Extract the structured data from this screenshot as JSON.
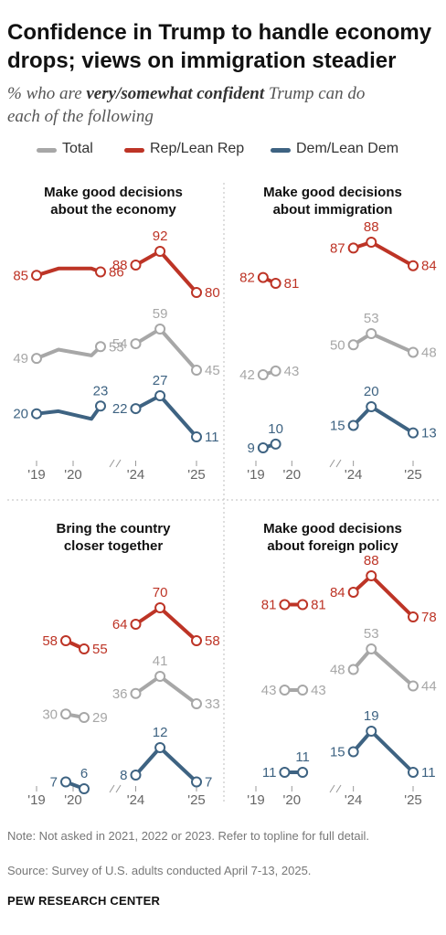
{
  "title_line1": "Confidence in Trump to handle economy",
  "title_line2": "drops; views on immigration steadier",
  "subtitle": {
    "prefix": "% who are ",
    "emphasis": "very/somewhat confident",
    "suffix_line1": " Trump can do",
    "line2": "each of the following"
  },
  "legend": [
    {
      "label": "Total",
      "color": "#a7a7a7"
    },
    {
      "label": "Rep/Lean Rep",
      "color": "#bd3426"
    },
    {
      "label": "Dem/Lean Dem",
      "color": "#3e6382"
    }
  ],
  "note": "Note: Not asked in 2021, 2022 or 2023. Refer to topline for full detail.",
  "source": "Source: Survey of U.S. adults conducted April 7-13, 2025.",
  "brand": "PEW RESEARCH CENTER",
  "colors": {
    "total": "#a7a7a7",
    "rep": "#bd3426",
    "dem": "#3e6382"
  },
  "chart_data": [
    {
      "type": "line",
      "title": [
        "Make good decisions",
        "about the economy"
      ],
      "x_ticks": [
        "'19",
        "'20",
        "'24",
        "'25"
      ],
      "series": [
        {
          "key": "rep",
          "name": "Rep/Lean Rep",
          "segments": [
            [
              {
                "x": 2019.0,
                "y": 85,
                "label": "85"
              },
              {
                "x": 2019.6,
                "y": 87
              },
              {
                "x": 2020.5,
                "y": 87
              },
              {
                "x": 2020.75,
                "y": 86,
                "label": "86"
              }
            ],
            [
              {
                "x": 2024.0,
                "y": 88,
                "label": "88"
              },
              {
                "x": 2024.4,
                "y": 92,
                "label": "92"
              },
              {
                "x": 2025.0,
                "y": 80,
                "label": "80"
              }
            ]
          ]
        },
        {
          "key": "total",
          "name": "Total",
          "segments": [
            [
              {
                "x": 2019.0,
                "y": 49,
                "label": "49"
              },
              {
                "x": 2019.6,
                "y": 52
              },
              {
                "x": 2020.5,
                "y": 50
              },
              {
                "x": 2020.75,
                "y": 53,
                "label": "53"
              }
            ],
            [
              {
                "x": 2024.0,
                "y": 54,
                "label": "54"
              },
              {
                "x": 2024.4,
                "y": 59,
                "label": "59"
              },
              {
                "x": 2025.0,
                "y": 45,
                "label": "45"
              }
            ]
          ]
        },
        {
          "key": "dem",
          "name": "Dem/Lean Dem",
          "segments": [
            [
              {
                "x": 2019.0,
                "y": 20,
                "label": "20"
              },
              {
                "x": 2019.6,
                "y": 21
              },
              {
                "x": 2020.5,
                "y": 18
              },
              {
                "x": 2020.75,
                "y": 23,
                "label": "23"
              }
            ],
            [
              {
                "x": 2024.0,
                "y": 22,
                "label": "22"
              },
              {
                "x": 2024.4,
                "y": 27,
                "label": "27"
              },
              {
                "x": 2025.0,
                "y": 11,
                "label": "11"
              }
            ]
          ]
        }
      ]
    },
    {
      "type": "line",
      "title": [
        "Make good decisions",
        "about immigration"
      ],
      "x_ticks": [
        "'19",
        "'20",
        "'24",
        "'25"
      ],
      "series": [
        {
          "key": "rep",
          "name": "Rep/Lean Rep",
          "segments": [
            [
              {
                "x": 2019.2,
                "y": 82,
                "label": "82"
              },
              {
                "x": 2019.55,
                "y": 81,
                "label": "81"
              }
            ],
            [
              {
                "x": 2024.0,
                "y": 87,
                "label": "87"
              },
              {
                "x": 2024.3,
                "y": 88,
                "label": "88"
              },
              {
                "x": 2025.0,
                "y": 84,
                "label": "84"
              }
            ]
          ]
        },
        {
          "key": "total",
          "name": "Total",
          "segments": [
            [
              {
                "x": 2019.2,
                "y": 42,
                "label": "42"
              },
              {
                "x": 2019.55,
                "y": 43,
                "label": "43"
              }
            ],
            [
              {
                "x": 2024.0,
                "y": 50,
                "label": "50"
              },
              {
                "x": 2024.3,
                "y": 53,
                "label": "53"
              },
              {
                "x": 2025.0,
                "y": 48,
                "label": "48"
              }
            ]
          ]
        },
        {
          "key": "dem",
          "name": "Dem/Lean Dem",
          "segments": [
            [
              {
                "x": 2019.2,
                "y": 9,
                "label": "9"
              },
              {
                "x": 2019.55,
                "y": 10,
                "label": "10"
              }
            ],
            [
              {
                "x": 2024.0,
                "y": 15,
                "label": "15"
              },
              {
                "x": 2024.3,
                "y": 20,
                "label": "20"
              },
              {
                "x": 2025.0,
                "y": 13,
                "label": "13"
              }
            ]
          ]
        }
      ]
    },
    {
      "type": "line",
      "title": [
        "Bring the country",
        "closer together"
      ],
      "x_ticks": [
        "'19",
        "'20",
        "'24",
        "'25"
      ],
      "series": [
        {
          "key": "rep",
          "name": "Rep/Lean Rep",
          "segments": [
            [
              {
                "x": 2019.8,
                "y": 58,
                "label": "58"
              },
              {
                "x": 2020.3,
                "y": 55,
                "label": "55"
              }
            ],
            [
              {
                "x": 2024.0,
                "y": 64,
                "label": "64"
              },
              {
                "x": 2024.4,
                "y": 70,
                "label": "70"
              },
              {
                "x": 2025.0,
                "y": 58,
                "label": "58"
              }
            ]
          ]
        },
        {
          "key": "total",
          "name": "Total",
          "segments": [
            [
              {
                "x": 2019.8,
                "y": 30,
                "label": "30"
              },
              {
                "x": 2020.3,
                "y": 29,
                "label": "29"
              }
            ],
            [
              {
                "x": 2024.0,
                "y": 36,
                "label": "36"
              },
              {
                "x": 2024.4,
                "y": 41,
                "label": "41"
              },
              {
                "x": 2025.0,
                "y": 33,
                "label": "33"
              }
            ]
          ]
        },
        {
          "key": "dem",
          "name": "Dem/Lean Dem",
          "segments": [
            [
              {
                "x": 2019.8,
                "y": 7,
                "label": "7"
              },
              {
                "x": 2020.3,
                "y": 6,
                "label": "6"
              }
            ],
            [
              {
                "x": 2024.0,
                "y": 8,
                "label": "8"
              },
              {
                "x": 2024.4,
                "y": 12,
                "label": "12"
              },
              {
                "x": 2025.0,
                "y": 7,
                "label": "7"
              }
            ]
          ]
        }
      ]
    },
    {
      "type": "line",
      "title": [
        "Make good decisions",
        "about foreign policy"
      ],
      "x_ticks": [
        "'19",
        "'20",
        "'24",
        "'25"
      ],
      "series": [
        {
          "key": "rep",
          "name": "Rep/Lean Rep",
          "segments": [
            [
              {
                "x": 2019.8,
                "y": 81,
                "label": "81"
              },
              {
                "x": 2020.3,
                "y": 81,
                "label": "81"
              }
            ],
            [
              {
                "x": 2024.0,
                "y": 84,
                "label": "84"
              },
              {
                "x": 2024.3,
                "y": 88,
                "label": "88"
              },
              {
                "x": 2025.0,
                "y": 78,
                "label": "78"
              }
            ]
          ]
        },
        {
          "key": "total",
          "name": "Total",
          "segments": [
            [
              {
                "x": 2019.8,
                "y": 43,
                "label": "43"
              },
              {
                "x": 2020.3,
                "y": 43,
                "label": "43"
              }
            ],
            [
              {
                "x": 2024.0,
                "y": 48,
                "label": "48"
              },
              {
                "x": 2024.3,
                "y": 53,
                "label": "53"
              },
              {
                "x": 2025.0,
                "y": 44,
                "label": "44"
              }
            ]
          ]
        },
        {
          "key": "dem",
          "name": "Dem/Lean Dem",
          "segments": [
            [
              {
                "x": 2019.8,
                "y": 11,
                "label": "11"
              },
              {
                "x": 2020.3,
                "y": 11,
                "label": "11"
              }
            ],
            [
              {
                "x": 2024.0,
                "y": 15,
                "label": "15"
              },
              {
                "x": 2024.3,
                "y": 19,
                "label": "19"
              },
              {
                "x": 2025.0,
                "y": 11,
                "label": "11"
              }
            ]
          ]
        }
      ]
    }
  ]
}
